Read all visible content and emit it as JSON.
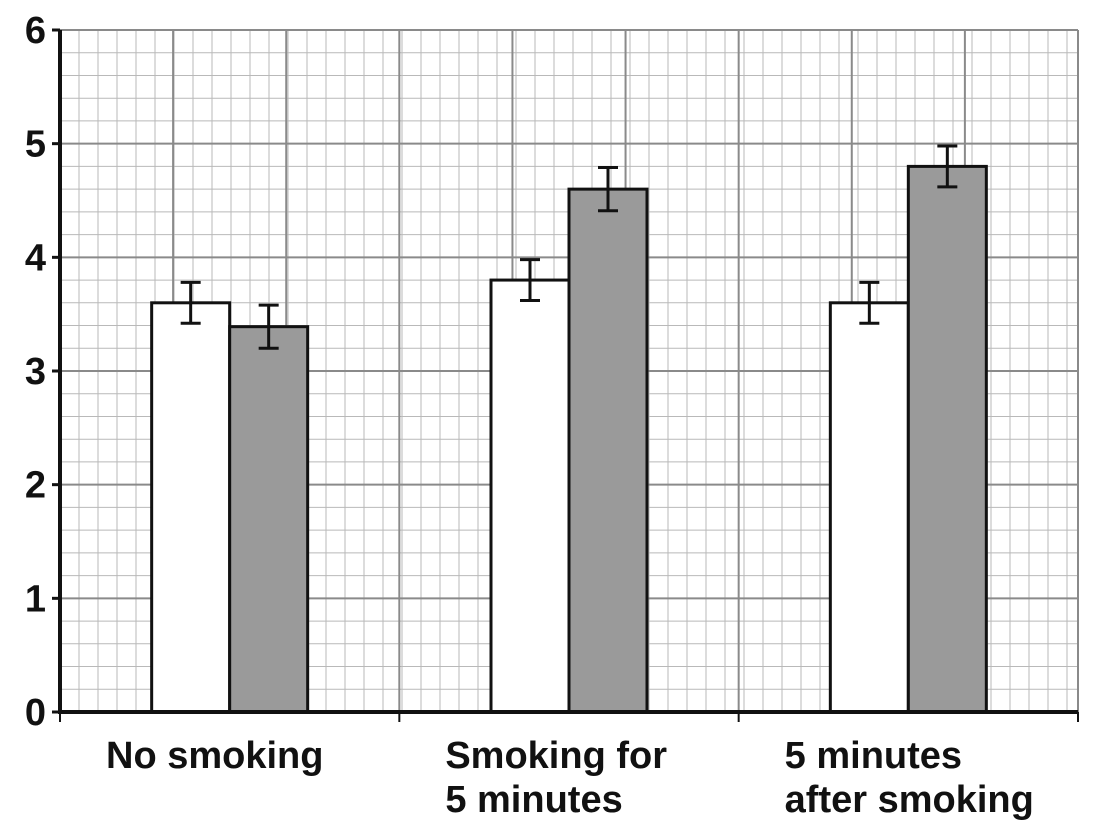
{
  "chart_data": {
    "type": "bar",
    "title": "",
    "xlabel": "",
    "ylabel": "",
    "ylim": [
      0,
      6
    ],
    "yticks": [
      "0",
      "1",
      "2",
      "3",
      "4",
      "5",
      "6"
    ],
    "grid": true,
    "categories": [
      [
        "No smoking"
      ],
      [
        "Smoking for",
        "5 minutes"
      ],
      [
        "5 minutes",
        "after smoking"
      ]
    ],
    "series": [
      {
        "color": "#ffffff",
        "values": [
          3.6,
          3.8,
          3.6
        ],
        "errors": [
          0.18,
          0.18,
          0.18
        ]
      },
      {
        "color": "#9a9a9a",
        "values": [
          3.39,
          4.6,
          4.8
        ],
        "errors": [
          0.19,
          0.19,
          0.18
        ]
      }
    ]
  }
}
